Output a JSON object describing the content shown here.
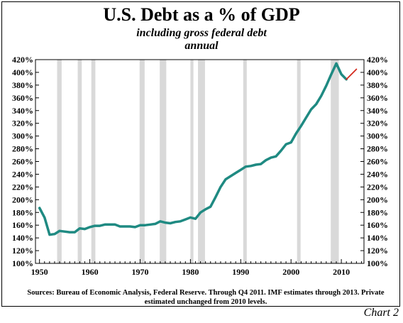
{
  "header": {
    "title": "U.S. Debt as a % of GDP",
    "subtitle": "including gross federal debt",
    "subtitle2": "annual"
  },
  "footer": {
    "source": "Sources: Bureau of Economic Analysis, Federal Reserve.   Through Q4 2011. IMF estimates through 2013. Private estimated unchanged from 2010 levels.",
    "chart_number": "Chart 2"
  },
  "chart_data": {
    "type": "line",
    "title": "U.S. Debt as a % of GDP",
    "subtitle": "including gross federal debt",
    "xlabel": "",
    "ylabel": "",
    "xlim": [
      1949.2,
      2014.5
    ],
    "ylim": [
      100,
      420
    ],
    "x_ticks": [
      1950,
      1960,
      1970,
      1980,
      1990,
      2000,
      2010
    ],
    "y_ticks": [
      100,
      120,
      140,
      160,
      180,
      200,
      220,
      240,
      260,
      280,
      300,
      320,
      340,
      360,
      380,
      400,
      420
    ],
    "y_tick_format": "%",
    "grid": false,
    "recession_shading": [
      [
        1953.5,
        1954.4
      ],
      [
        1957.6,
        1958.4
      ],
      [
        1960.3,
        1961.1
      ],
      [
        1969.9,
        1970.9
      ],
      [
        1973.9,
        1975.2
      ],
      [
        1980.0,
        1980.6
      ],
      [
        1981.5,
        1982.9
      ],
      [
        1990.5,
        1991.2
      ],
      [
        2001.2,
        2001.9
      ],
      [
        2007.9,
        2009.5
      ]
    ],
    "colors": {
      "actual": "#1f8a82",
      "estimate": "#d42a1e",
      "recession": "#d9d9d9"
    },
    "series": [
      {
        "x": [
          1950,
          1951,
          1952,
          1953,
          1954,
          1955,
          1956,
          1957,
          1958,
          1959,
          1960,
          1961,
          1962,
          1963,
          1964,
          1965,
          1966,
          1967,
          1968,
          1969,
          1970,
          1971,
          1972,
          1973,
          1974,
          1975,
          1976,
          1977,
          1978,
          1979,
          1980,
          1981,
          1982,
          1983,
          1984,
          1985,
          1986,
          1987,
          1988,
          1989,
          1990,
          1991,
          1992,
          1993,
          1994,
          1995,
          1996,
          1997,
          1998,
          1999,
          2000,
          2001,
          2002,
          2003,
          2004,
          2005,
          2006,
          2007,
          2008,
          2009,
          2010,
          2011
        ],
        "values": [
          187,
          172,
          145,
          146,
          151,
          150,
          149,
          149,
          155,
          154,
          157,
          159,
          159,
          161,
          161,
          161,
          158,
          158,
          158,
          157,
          160,
          160,
          161,
          162,
          166,
          164,
          163,
          165,
          166,
          169,
          172,
          170,
          180,
          185,
          189,
          204,
          220,
          232,
          237,
          242,
          247,
          252,
          253,
          255,
          256,
          262,
          266,
          268,
          277,
          287,
          290,
          304,
          316,
          329,
          342,
          350,
          363,
          379,
          397,
          414,
          397,
          389
        ]
      },
      {
        "x": [
          2011,
          2012,
          2013
        ],
        "values": [
          389,
          397,
          405
        ]
      }
    ]
  }
}
